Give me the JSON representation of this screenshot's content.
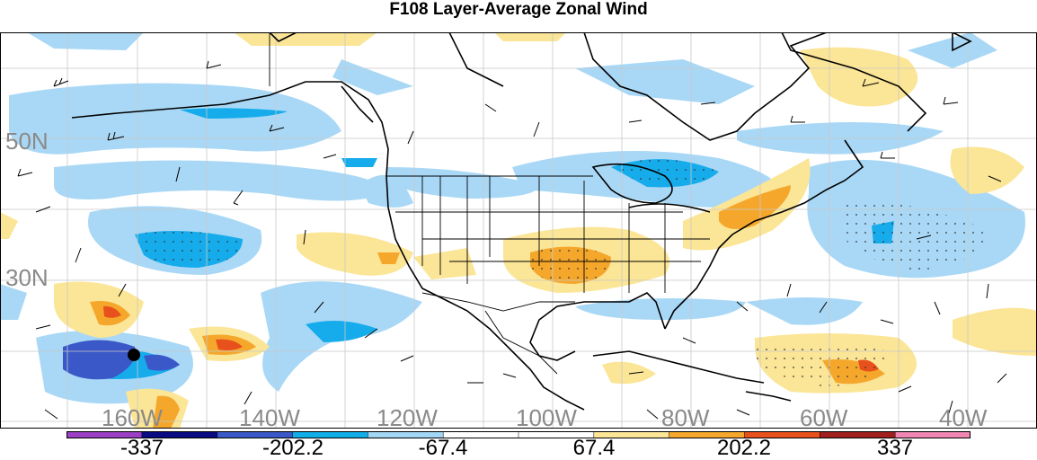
{
  "title": "F108 Layer-Average Zonal Wind",
  "lat_labels": [
    "50N",
    "30N"
  ],
  "lon_labels": [
    "160W",
    "140W",
    "120W",
    "100W",
    "80W",
    "60W",
    "40W"
  ],
  "colorbar": {
    "labels": [
      "-337",
      "-202.2",
      "-67.4",
      "67.4",
      "202.2",
      "337"
    ],
    "colors": [
      "#9b3fc3",
      "#0b0b83",
      "#3b58c8",
      "#11aee8",
      "#a3d6f5",
      "#ffffff",
      "#ffffff",
      "#fbe596",
      "#f5a72b",
      "#e8501c",
      "#a01f1f",
      "#ef87b2"
    ]
  },
  "marker": "black-dot"
}
